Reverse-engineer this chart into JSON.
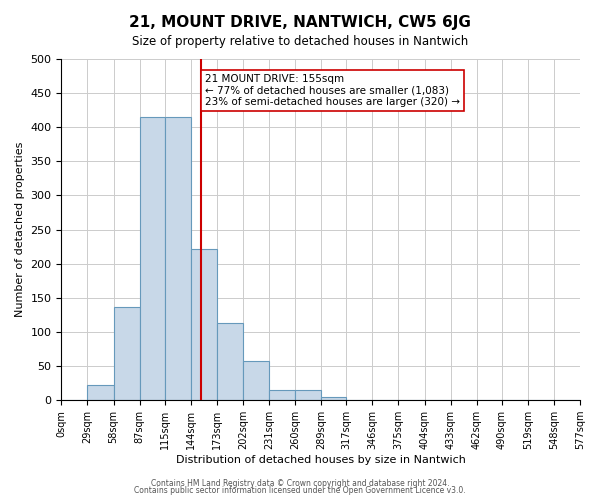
{
  "title": "21, MOUNT DRIVE, NANTWICH, CW5 6JG",
  "subtitle": "Size of property relative to detached houses in Nantwich",
  "xlabel": "Distribution of detached houses by size in Nantwich",
  "ylabel": "Number of detached properties",
  "bar_color": "#c8d8e8",
  "bar_edge_color": "#6699bb",
  "background_color": "#ffffff",
  "grid_color": "#cccccc",
  "bin_edges": [
    0,
    29,
    58,
    87,
    115,
    144,
    173,
    202,
    231,
    260,
    289,
    317,
    346,
    375,
    404,
    433,
    462,
    490,
    519,
    548,
    577
  ],
  "bin_labels": [
    "0sqm",
    "29sqm",
    "58sqm",
    "87sqm",
    "115sqm",
    "144sqm",
    "173sqm",
    "202sqm",
    "231sqm",
    "260sqm",
    "289sqm",
    "317sqm",
    "346sqm",
    "375sqm",
    "404sqm",
    "433sqm",
    "462sqm",
    "490sqm",
    "519sqm",
    "548sqm",
    "577sqm"
  ],
  "bar_heights": [
    0,
    22,
    137,
    415,
    415,
    222,
    113,
    57,
    15,
    15,
    5,
    0,
    0,
    0,
    0,
    0,
    0,
    0,
    0,
    0
  ],
  "property_size": 155,
  "property_line_color": "#cc0000",
  "annotation_text": "21 MOUNT DRIVE: 155sqm\n← 77% of detached houses are smaller (1,083)\n23% of semi-detached houses are larger (320) →",
  "annotation_box_color": "#ffffff",
  "annotation_box_edge_color": "#cc0000",
  "ylim": [
    0,
    500
  ],
  "footer_line1": "Contains HM Land Registry data © Crown copyright and database right 2024.",
  "footer_line2": "Contains public sector information licensed under the Open Government Licence v3.0."
}
